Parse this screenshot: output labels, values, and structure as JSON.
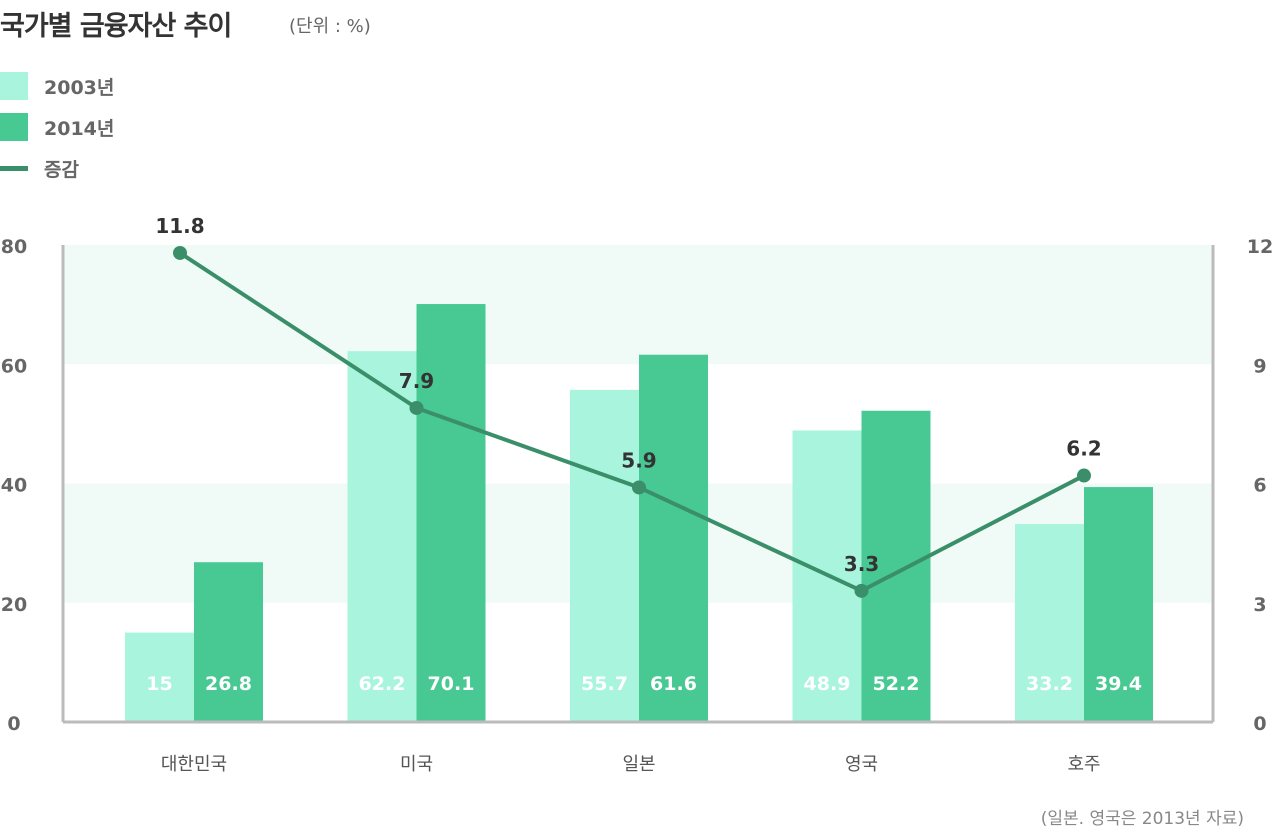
{
  "colors": {
    "y2003": "#a8f4dc",
    "y2014": "#48c994",
    "line": "#3a8f6a",
    "band": "#f0fbf7",
    "axis": "#bbbbbb"
  },
  "chart_data": {
    "type": "bar",
    "title": "국가별 금융자산 추이",
    "unit": "(단위 : %)",
    "categories": [
      "대한민국",
      "미국",
      "일본",
      "영국",
      "호주"
    ],
    "series": [
      {
        "name": "2003년",
        "type": "bar",
        "values": [
          15,
          62.2,
          55.7,
          48.9,
          33.2
        ]
      },
      {
        "name": "2014년",
        "type": "bar",
        "values": [
          26.8,
          70.1,
          61.6,
          52.2,
          39.4
        ]
      },
      {
        "name": "증감",
        "type": "line",
        "axis": "right",
        "values": [
          11.8,
          7.9,
          5.9,
          3.3,
          6.2
        ]
      }
    ],
    "ylim": [
      0,
      80
    ],
    "yticks": [
      "0",
      "20",
      "40",
      "60",
      "80"
    ],
    "y2lim": [
      0,
      12
    ],
    "y2ticks": [
      "0",
      "3",
      "6",
      "9",
      "12"
    ],
    "legend": "top-left",
    "note": "(일본. 영국은 2013년 자료)"
  }
}
